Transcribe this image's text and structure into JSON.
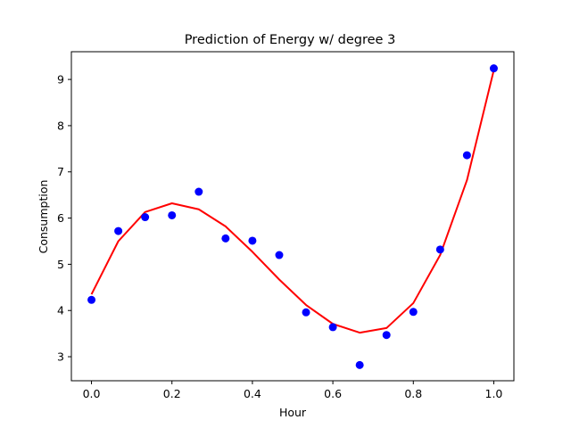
{
  "chart_data": {
    "type": "scatter",
    "title": "Prediction of Energy w/ degree 3",
    "xlabel": "Hour",
    "ylabel": "Consumption",
    "xlim": [
      -0.05,
      1.05
    ],
    "ylim": [
      2.48,
      9.6
    ],
    "xticks": [
      0.0,
      0.2,
      0.4,
      0.6,
      0.8,
      1.0
    ],
    "xtick_labels": [
      "0.0",
      "0.2",
      "0.4",
      "0.6",
      "0.8",
      "1.0"
    ],
    "yticks": [
      3,
      4,
      5,
      6,
      7,
      8,
      9
    ],
    "ytick_labels": [
      "3",
      "4",
      "5",
      "6",
      "7",
      "8",
      "9"
    ],
    "grid": false,
    "series": [
      {
        "type": "scatter",
        "color": "#0000ff",
        "x": [
          0.0,
          0.0667,
          0.1333,
          0.2,
          0.2667,
          0.3333,
          0.4,
          0.4667,
          0.5333,
          0.6,
          0.6667,
          0.7333,
          0.8,
          0.8667,
          0.9333,
          1.0
        ],
        "y": [
          4.23,
          5.72,
          6.02,
          6.06,
          6.57,
          5.56,
          5.51,
          5.2,
          3.96,
          3.64,
          2.82,
          3.47,
          3.97,
          5.32,
          7.36,
          9.24
        ]
      },
      {
        "type": "line",
        "color": "#ff0000",
        "x": [
          0.0,
          0.0667,
          0.1333,
          0.2,
          0.2667,
          0.3333,
          0.4,
          0.4667,
          0.5333,
          0.6,
          0.6667,
          0.7333,
          0.8,
          0.8667,
          0.9333,
          1.0
        ],
        "y": [
          4.35,
          5.5,
          6.13,
          6.32,
          6.19,
          5.82,
          5.27,
          4.67,
          4.12,
          3.71,
          3.52,
          3.62,
          4.16,
          5.2,
          6.82,
          9.2
        ]
      }
    ]
  }
}
